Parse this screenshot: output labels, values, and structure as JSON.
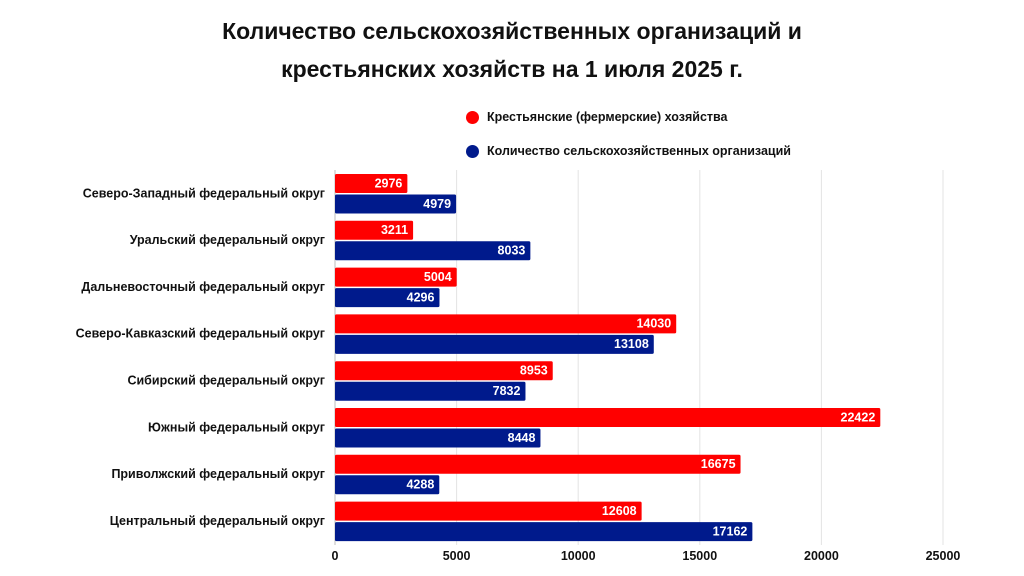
{
  "title_line1": "Количество сельскохозяйственных организаций и",
  "title_line2": "крестьянских хозяйств на 1 июля 2025 г.",
  "colors": {
    "farms": "#ff0000",
    "orgs": "#001a8c",
    "grid": "#e3e3e3"
  },
  "chart_data": {
    "type": "bar",
    "orientation": "horizontal",
    "title": "Количество сельскохозяйственных организаций и крестьянских хозяйств на 1 июля 2025 г.",
    "categories": [
      "Северо-Западный федеральный округ",
      "Уральский федеральный округ",
      "Дальневосточный федеральный округ",
      "Северо-Кавказский федеральный округ",
      "Сибирский федеральный округ",
      "Южный федеральный округ",
      "Приволжский федеральный округ",
      "Центральный федеральный округ"
    ],
    "series": [
      {
        "name": "Крестьянские (фермерские) хозяйства",
        "values": [
          2976,
          3211,
          5004,
          14030,
          8953,
          22422,
          16675,
          12608
        ]
      },
      {
        "name": "Количество сельскохозяйственных организаций",
        "values": [
          4979,
          8033,
          4296,
          13108,
          7832,
          8448,
          4288,
          17162
        ]
      }
    ],
    "xlim": [
      0,
      25000
    ],
    "xticks": [
      0,
      5000,
      10000,
      15000,
      20000,
      25000
    ],
    "xlabel": "",
    "ylabel": "",
    "grid": true,
    "legend": "top-right"
  }
}
